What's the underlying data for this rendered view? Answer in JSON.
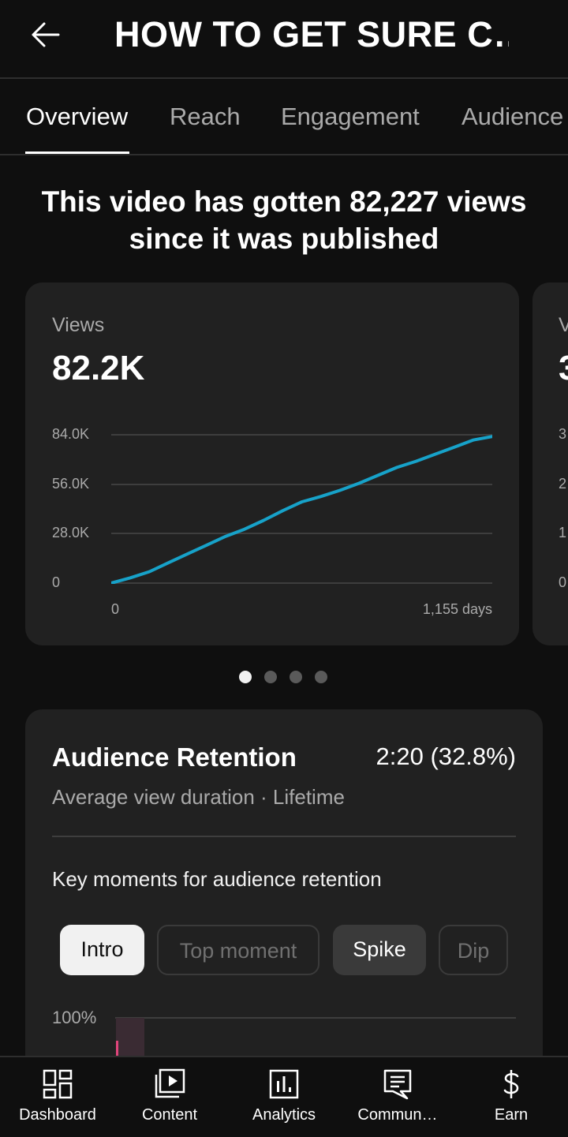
{
  "header": {
    "title": "HOW TO GET SURE C…"
  },
  "tabs": [
    {
      "label": "Overview"
    },
    {
      "label": "Reach"
    },
    {
      "label": "Engagement"
    },
    {
      "label": "Audience"
    }
  ],
  "headline": "This video has gotten 82,227 views since it was published",
  "views_card": {
    "label": "Views",
    "value": "82.2K",
    "yticks": [
      "84.0K",
      "56.0K",
      "28.0K",
      "0"
    ],
    "xtick_start": "0",
    "xtick_end": "1,155 days",
    "line_color": "#17a2c9"
  },
  "chart_data": {
    "type": "line",
    "title": "Views",
    "xlabel": "",
    "ylabel": "",
    "xlim": [
      0,
      1155
    ],
    "ylim": [
      0,
      84000
    ],
    "series": [
      {
        "x": [
          0,
          58,
          116,
          173,
          231,
          289,
          347,
          404,
          462,
          520,
          578,
          635,
          693,
          751,
          808,
          866,
          924,
          982,
          1040,
          1097,
          1155
        ],
        "y": [
          0,
          3000,
          6500,
          11500,
          16500,
          21500,
          26500,
          30500,
          35500,
          41000,
          46000,
          49000,
          52500,
          56500,
          61000,
          65500,
          69000,
          73000,
          77000,
          81000,
          83000
        ]
      }
    ]
  },
  "carousel": {
    "count": 4,
    "active": 0
  },
  "peek_card": {
    "label": "V",
    "value": "3",
    "yticks": [
      "3",
      "2",
      "1",
      "0"
    ]
  },
  "retention": {
    "title": "Audience Retention",
    "value": "2:20 (32.8%)",
    "subtitle": "Average view duration · Lifetime",
    "key_moments_label": "Key moments for audience retention",
    "chips": [
      "Intro",
      "Top moment",
      "Spike",
      "Dip"
    ],
    "selected_chip": "Intro",
    "ylabel": "100%",
    "accent_color": "#e0457b"
  },
  "nav": [
    {
      "label": "Dashboard",
      "icon": "dashboard-icon"
    },
    {
      "label": "Content",
      "icon": "content-icon"
    },
    {
      "label": "Analytics",
      "icon": "analytics-icon"
    },
    {
      "label": "Commun…",
      "icon": "community-icon"
    },
    {
      "label": "Earn",
      "icon": "earn-icon"
    }
  ]
}
